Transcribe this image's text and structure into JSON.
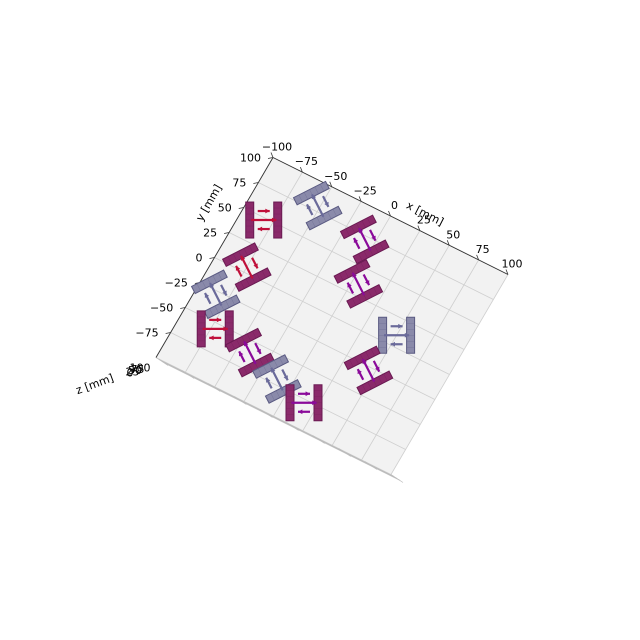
{
  "chart_data": {
    "type": "3d-scatter",
    "title": "",
    "xlabel": "x [mm]",
    "ylabel": "y [mm]",
    "zlabel": "z [mm]",
    "x_ticks": [
      "−100",
      "−75",
      "−50",
      "−25",
      "0",
      "25",
      "50",
      "75",
      "100"
    ],
    "y_ticks": [
      "100",
      "75",
      "50",
      "25",
      "0",
      "−25",
      "−50",
      "−75"
    ],
    "z_ticks": [
      "100",
      "75",
      "50",
      "25",
      "0"
    ],
    "xlim": [
      -100,
      100
    ],
    "ylim": [
      -100,
      100
    ],
    "grid": true,
    "colors": {
      "magenta_body": "#8a2a6a",
      "magenta_dark": "#6a1a52",
      "slate_body": "#8a8aaa",
      "slate_dark": "#5a5a82",
      "arrow_crimson": "#c0103a",
      "arrow_purple": "#8a0a9a",
      "arrow_slate": "#6a6a9a",
      "pane_face": "#f2f2f2",
      "grid_line": "#cfcfcf"
    },
    "groups": [
      {
        "x": -52,
        "y": 80,
        "theme": "slate"
      },
      {
        "x": -8,
        "y": 72,
        "theme": "magenta"
      },
      {
        "x": -82,
        "y": 48,
        "theme": "magenta"
      },
      {
        "x": 5,
        "y": 35,
        "theme": "magenta"
      },
      {
        "x": -75,
        "y": 5,
        "theme": "magenta"
      },
      {
        "x": 50,
        "y": 10,
        "theme": "slate"
      },
      {
        "x": -85,
        "y": -28,
        "theme": "slate"
      },
      {
        "x": 45,
        "y": -28,
        "theme": "magenta"
      },
      {
        "x": -72,
        "y": -55,
        "theme": "magenta"
      },
      {
        "x": -40,
        "y": -60,
        "theme": "magenta"
      },
      {
        "x": -12,
        "y": -70,
        "theme": "slate"
      },
      {
        "x": 15,
        "y": -78,
        "theme": "magenta"
      }
    ]
  }
}
